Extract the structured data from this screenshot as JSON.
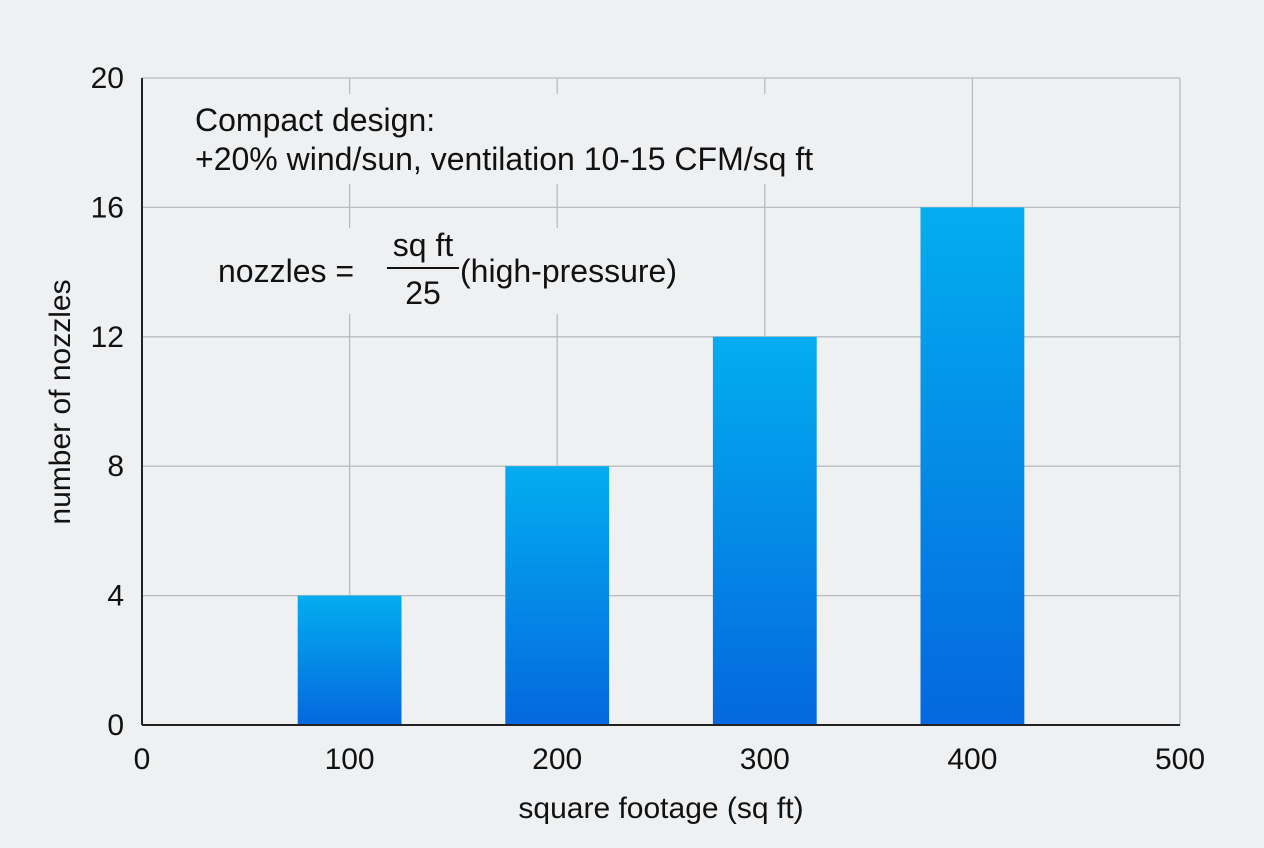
{
  "chart_data": {
    "type": "bar",
    "x": [
      100,
      200,
      300,
      400
    ],
    "values": [
      4,
      8,
      12,
      16
    ],
    "xlabel": "square footage (sq ft)",
    "ylabel": "number of nozzles",
    "xlim": [
      0,
      500
    ],
    "ylim": [
      0,
      20
    ],
    "xticks": [
      "0",
      "100",
      "200",
      "300",
      "400",
      "500"
    ],
    "yticks": [
      "0",
      "4",
      "8",
      "12",
      "16",
      "20"
    ],
    "grid": true,
    "annotations": {
      "line1": "Compact design:",
      "line2": "+20% wind/sun, ventilation 10-15 CFM/sq ft",
      "formula_lhs": "nozzles =",
      "formula_numerator": "sq ft",
      "formula_denominator": "25",
      "formula_suffix": "(high-pressure)"
    },
    "colors": {
      "bar_top": "#03adf0",
      "bar_bottom": "#0468de",
      "grid": "#b9bbbd",
      "axis": "#222222"
    }
  }
}
